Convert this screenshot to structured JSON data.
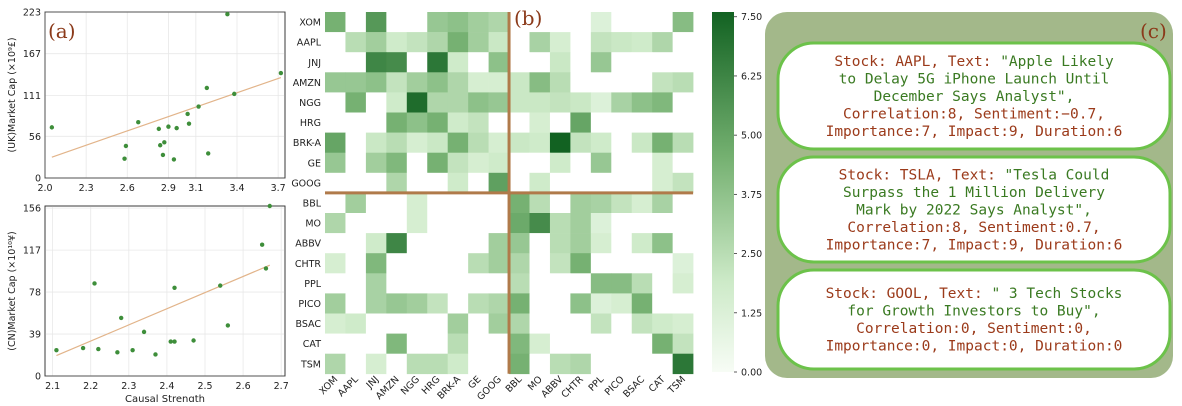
{
  "panels": {
    "a": "(a)",
    "b": "(b)",
    "c": "(c)"
  },
  "colors": {
    "dot": "#3e8e3a",
    "fit": "#e2b48a",
    "grid": "#e8e8e8",
    "divider": "#b07a4a",
    "card_bg": "#a3b88a",
    "card_border": "#6cc24a",
    "text_red": "#9b3a1a",
    "text_green": "#3a7a22"
  },
  "chart_data": [
    {
      "type": "scatter",
      "ylabel": "(UK)Market Cap (×10⁹£)",
      "xlim": [
        2.0,
        3.75
      ],
      "xticks": [
        "2.0",
        "2.3",
        "2.6",
        "2.9",
        "3.1",
        "3.4",
        "3.7"
      ],
      "xtick_values": [
        2.0,
        2.3,
        2.6,
        2.9,
        3.1,
        3.4,
        3.7
      ],
      "ylim": [
        0,
        223
      ],
      "yticks": [
        "0",
        "56",
        "111",
        "167",
        "223"
      ],
      "ytick_values": [
        0,
        56,
        111,
        167,
        223
      ],
      "points": [
        [
          2.05,
          68
        ],
        [
          2.58,
          26
        ],
        [
          2.59,
          43
        ],
        [
          2.68,
          75
        ],
        [
          2.83,
          66
        ],
        [
          2.84,
          44
        ],
        [
          2.86,
          31
        ],
        [
          2.87,
          48
        ],
        [
          2.9,
          69
        ],
        [
          2.94,
          25
        ],
        [
          2.96,
          67
        ],
        [
          3.04,
          86
        ],
        [
          3.05,
          73
        ],
        [
          3.12,
          96
        ],
        [
          3.18,
          121
        ],
        [
          3.19,
          33
        ],
        [
          3.33,
          220
        ],
        [
          3.38,
          113
        ],
        [
          3.72,
          141
        ]
      ],
      "fit": [
        [
          2.05,
          28
        ],
        [
          3.72,
          135
        ]
      ]
    },
    {
      "type": "scatter",
      "xlabel": "Causal Strength",
      "ylabel": "(CN)Market Cap (×10¹⁰¥)",
      "xlim": [
        2.08,
        2.71
      ],
      "xticks": [
        "2.1",
        "2.2",
        "2.3",
        "2.4",
        "2.5",
        "2.6",
        "2.7"
      ],
      "xtick_values": [
        2.1,
        2.2,
        2.3,
        2.4,
        2.5,
        2.6,
        2.7
      ],
      "ylim": [
        0,
        158
      ],
      "yticks": [
        "0",
        "39",
        "78",
        "117",
        "156"
      ],
      "ytick_values": [
        0,
        39,
        78,
        117,
        156
      ],
      "points": [
        [
          2.11,
          24
        ],
        [
          2.18,
          26
        ],
        [
          2.21,
          86
        ],
        [
          2.22,
          25
        ],
        [
          2.27,
          22
        ],
        [
          2.28,
          54
        ],
        [
          2.31,
          24
        ],
        [
          2.34,
          41
        ],
        [
          2.37,
          20
        ],
        [
          2.41,
          32
        ],
        [
          2.42,
          32
        ],
        [
          2.42,
          82
        ],
        [
          2.47,
          33
        ],
        [
          2.54,
          84
        ],
        [
          2.56,
          47
        ],
        [
          2.65,
          122
        ],
        [
          2.66,
          100
        ],
        [
          2.67,
          158
        ]
      ],
      "fit": [
        [
          2.11,
          19
        ],
        [
          2.67,
          103
        ]
      ]
    },
    {
      "type": "heatmap",
      "labels": [
        "XOM",
        "AAPL",
        "JNJ",
        "AMZN",
        "NGG",
        "HRG",
        "BRK-A",
        "GE",
        "GOOG",
        "BBL",
        "MO",
        "ABBV",
        "CHTR",
        "PPL",
        "PICO",
        "BSAC",
        "CAT",
        "TSM"
      ],
      "colorbar": {
        "min": 0,
        "max": 7.6,
        "ticks": [
          "0.00",
          "1.25",
          "2.50",
          "3.75",
          "5.00",
          "6.25",
          "7.50"
        ],
        "tick_values": [
          0,
          1.25,
          2.5,
          3.75,
          5,
          6.25,
          7.5
        ]
      },
      "values": [
        [
          4.5,
          0,
          5.5,
          0,
          0,
          3.5,
          3.8,
          3.2,
          2.8,
          0,
          0,
          0,
          0,
          1.2,
          0,
          0,
          0,
          4
        ],
        [
          0,
          2.5,
          3.2,
          1.8,
          2.2,
          2.8,
          4.5,
          3.2,
          2.0,
          0,
          3.0,
          1.5,
          0,
          2.2,
          2.0,
          1.8,
          2.8,
          0
        ],
        [
          0,
          0,
          6.2,
          6.0,
          0,
          6.8,
          1.8,
          0,
          3.8,
          0,
          0,
          2.0,
          0,
          3.5,
          0,
          0,
          0,
          0
        ],
        [
          3.5,
          3.5,
          3.8,
          2.2,
          3.2,
          3.8,
          2.8,
          1.5,
          1.5,
          2.0,
          4.0,
          2.5,
          0,
          0,
          0,
          0,
          2.2,
          2.5
        ],
        [
          0,
          4.5,
          0,
          1.8,
          7.2,
          2.8,
          2.8,
          3.8,
          3.5,
          2.0,
          2.0,
          2.2,
          2.0,
          1.2,
          3.0,
          3.8,
          4.2,
          0
        ],
        [
          0,
          0,
          0,
          4.5,
          3.8,
          4.5,
          1.8,
          2.2,
          0,
          0,
          1.5,
          0,
          5.0,
          0,
          0,
          0,
          0,
          0
        ],
        [
          5.0,
          0,
          2.0,
          2.5,
          1.5,
          2.0,
          4.5,
          2.5,
          1.5,
          2.0,
          1.8,
          7.6,
          2.2,
          1.8,
          0,
          2.0,
          4.5,
          2.5
        ],
        [
          3.5,
          0,
          3.2,
          4.2,
          0,
          4.5,
          2.2,
          1.5,
          1.8,
          0,
          0,
          1.8,
          0,
          3.5,
          0,
          0,
          1.5,
          0
        ],
        [
          0,
          0,
          0,
          2.8,
          0,
          0,
          1.8,
          0,
          5.2,
          0,
          1.8,
          0,
          0,
          0,
          0,
          0,
          1.5,
          2.2
        ],
        [
          0,
          3.2,
          0,
          0,
          1.5,
          0,
          0,
          0,
          0,
          4.5,
          2.5,
          0,
          3.2,
          3.0,
          2.2,
          1.5,
          3.0,
          0
        ],
        [
          2.8,
          0,
          0,
          0,
          1.5,
          0,
          0,
          0,
          0,
          4.8,
          6.0,
          2.5,
          3.2,
          1.2,
          0,
          0,
          0,
          0
        ],
        [
          0,
          0,
          1.8,
          6.2,
          0,
          0,
          0,
          0,
          3.2,
          3.5,
          0,
          2.5,
          3.2,
          1.5,
          0,
          1.8,
          3.8,
          0
        ],
        [
          1.5,
          0,
          4.2,
          0,
          0,
          0,
          0,
          2.5,
          3.2,
          2.8,
          0,
          2.2,
          4.5,
          0,
          0,
          0,
          0,
          1.2
        ],
        [
          0,
          0,
          3.0,
          0,
          0,
          0,
          0,
          0,
          0,
          2.5,
          0,
          0,
          0,
          4.0,
          4.0,
          2.5,
          0,
          1.5
        ],
        [
          3.2,
          0,
          3.0,
          3.5,
          3.2,
          2.2,
          0,
          2.5,
          2.8,
          4.5,
          0,
          0,
          3.8,
          1.2,
          1.5,
          4.5,
          0,
          0
        ],
        [
          1.5,
          1.8,
          0,
          0,
          0,
          0,
          3.2,
          0,
          3.2,
          2.8,
          0,
          0,
          0,
          2.2,
          0,
          2.2,
          1.8,
          1.5
        ],
        [
          0,
          0,
          0,
          4.2,
          0,
          0,
          2.5,
          0,
          0,
          4.2,
          1.5,
          0,
          0,
          0,
          0,
          0,
          4.5,
          2.2
        ],
        [
          2.8,
          0,
          1.5,
          0,
          2.5,
          2.5,
          1.8,
          0,
          0,
          4.5,
          0,
          2.5,
          2.8,
          0,
          0,
          0,
          0,
          6.8
        ]
      ]
    }
  ],
  "cards": [
    {
      "prefix": "Stock: AAPL, Text: ",
      "lines": [
        "\"Apple Likely",
        "to Delay 5G iPhone Launch Until",
        "December Says Analyst\","
      ],
      "stats": [
        "Correlation:8, Sentiment:−0.7,",
        "Importance:7, Impact:9, Duration:6"
      ]
    },
    {
      "prefix": "Stock: TSLA, Text: ",
      "lines": [
        "\"Tesla Could",
        "Surpass the  1 Million Delivery",
        "Mark by 2022 Says Analyst\","
      ],
      "stats": [
        "Correlation:8, Sentiment:0.7,",
        "Importance:7, Impact:9, Duration:6"
      ]
    },
    {
      "prefix": "Stock: GOOL, Text: ",
      "lines": [
        "\" 3 Tech Stocks",
        "for Growth Investors to Buy\","
      ],
      "stats": [
        "Correlation:0, Sentiment:0,",
        "Importance:0, Impact:0, Duration:0"
      ]
    }
  ]
}
